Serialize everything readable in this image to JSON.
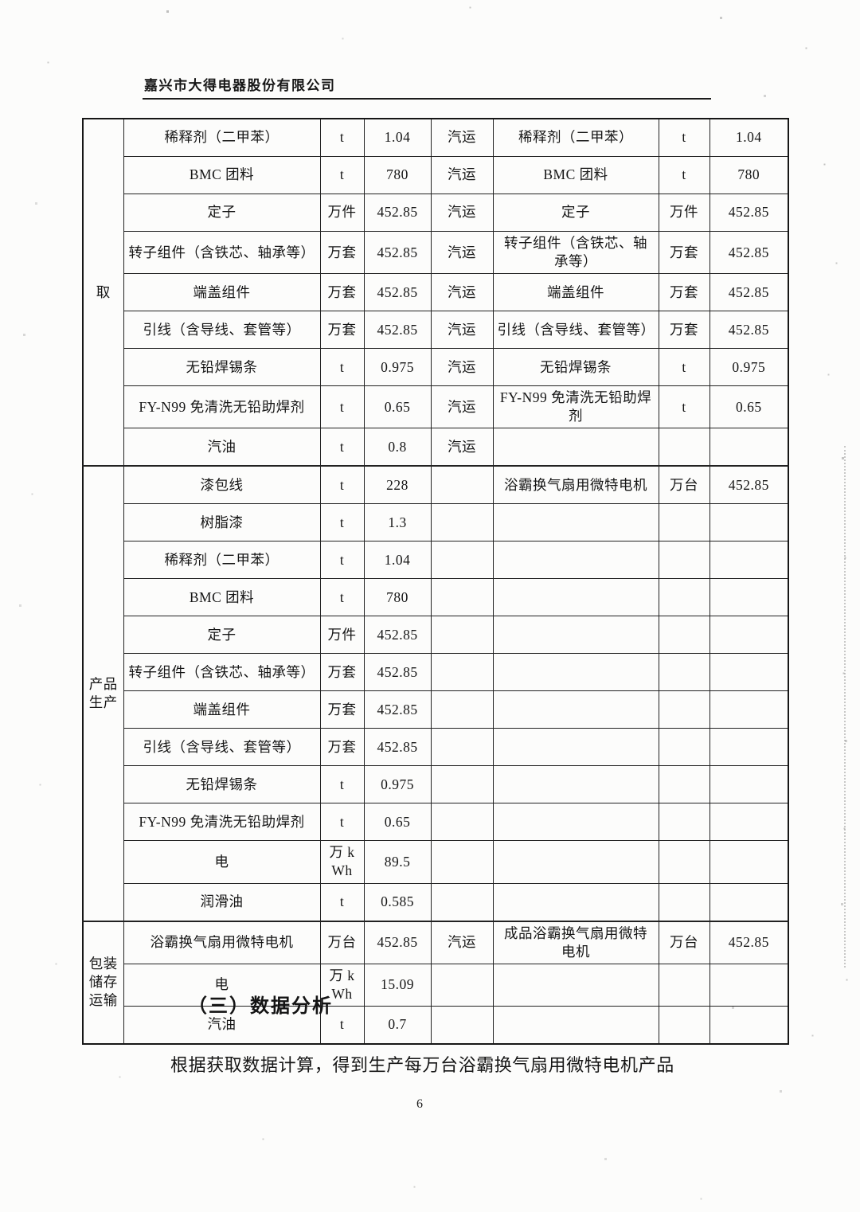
{
  "header": {
    "title": "嘉兴市大得电器股份有限公司"
  },
  "table": {
    "sections": [
      {
        "category_lines": [
          "取"
        ],
        "rows": [
          [
            "稀释剂（二甲苯）",
            "t",
            "1.04",
            "汽运",
            "稀释剂（二甲苯）",
            "t",
            "1.04"
          ],
          [
            "BMC 团料",
            "t",
            "780",
            "汽运",
            "BMC 团料",
            "t",
            "780"
          ],
          [
            "定子",
            "万件",
            "452.85",
            "汽运",
            "定子",
            "万件",
            "452.85"
          ],
          [
            "转子组件（含铁芯、轴承等）",
            "万套",
            "452.85",
            "汽运",
            "转子组件（含铁芯、轴承等）",
            "万套",
            "452.85"
          ],
          [
            "端盖组件",
            "万套",
            "452.85",
            "汽运",
            "端盖组件",
            "万套",
            "452.85"
          ],
          [
            "引线（含导线、套管等）",
            "万套",
            "452.85",
            "汽运",
            "引线（含导线、套管等）",
            "万套",
            "452.85"
          ],
          [
            "无铅焊锡条",
            "t",
            "0.975",
            "汽运",
            "无铅焊锡条",
            "t",
            "0.975"
          ],
          [
            "FY-N99 免清洗无铅助焊剂",
            "t",
            "0.65",
            "汽运",
            "FY-N99 免清洗无铅助焊剂",
            "t",
            "0.65"
          ],
          [
            "汽油",
            "t",
            "0.8",
            "汽运",
            "",
            "",
            ""
          ]
        ]
      },
      {
        "category_lines": [
          "产品",
          "生产"
        ],
        "rows": [
          [
            "漆包线",
            "t",
            "228",
            "",
            "浴霸换气扇用微特电机",
            "万台",
            "452.85"
          ],
          [
            "树脂漆",
            "t",
            "1.3",
            "",
            "",
            "",
            ""
          ],
          [
            "稀释剂（二甲苯）",
            "t",
            "1.04",
            "",
            "",
            "",
            ""
          ],
          [
            "BMC 团料",
            "t",
            "780",
            "",
            "",
            "",
            ""
          ],
          [
            "定子",
            "万件",
            "452.85",
            "",
            "",
            "",
            ""
          ],
          [
            "转子组件（含铁芯、轴承等）",
            "万套",
            "452.85",
            "",
            "",
            "",
            ""
          ],
          [
            "端盖组件",
            "万套",
            "452.85",
            "",
            "",
            "",
            ""
          ],
          [
            "引线（含导线、套管等）",
            "万套",
            "452.85",
            "",
            "",
            "",
            ""
          ],
          [
            "无铅焊锡条",
            "t",
            "0.975",
            "",
            "",
            "",
            ""
          ],
          [
            "FY-N99 免清洗无铅助焊剂",
            "t",
            "0.65",
            "",
            "",
            "",
            ""
          ],
          [
            "电",
            "万 kWh",
            "89.5",
            "",
            "",
            "",
            ""
          ],
          [
            "润滑油",
            "t",
            "0.585",
            "",
            "",
            "",
            ""
          ]
        ]
      },
      {
        "category_lines": [
          "包装",
          "储存",
          "运输"
        ],
        "rows": [
          [
            "浴霸换气扇用微特电机",
            "万台",
            "452.85",
            "汽运",
            "成品浴霸换气扇用微特电机",
            "万台",
            "452.85"
          ],
          [
            "电",
            "万 kWh",
            "15.09",
            "",
            "",
            "",
            ""
          ],
          [
            "汽油",
            "t",
            "0.7",
            "",
            "",
            "",
            ""
          ]
        ]
      }
    ]
  },
  "footer": {
    "section_heading": "（三）数据分析",
    "paragraph": "根据获取数据计算，得到生产每万台浴霸换气扇用微特电机产品",
    "page_number": "6"
  }
}
